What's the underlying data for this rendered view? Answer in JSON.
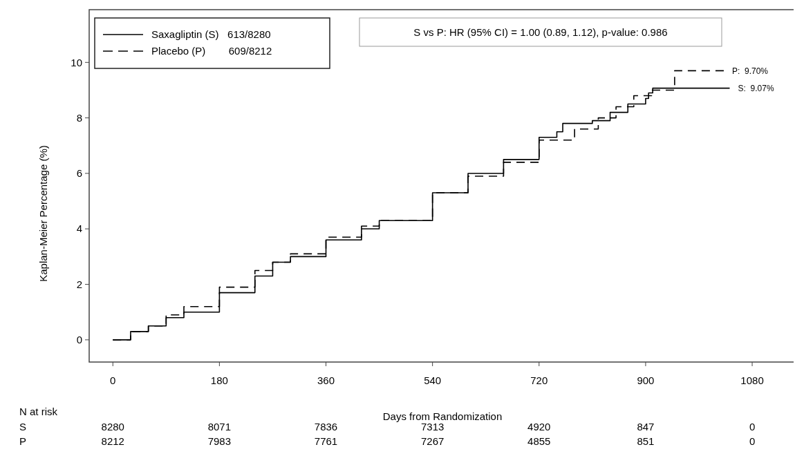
{
  "chart_data": {
    "type": "step",
    "xlabel": "Days from Randomization",
    "ylabel": "Kaplan-Meier Percentage (%)",
    "xlim": [
      -40,
      1150
    ],
    "xticks": [
      0,
      180,
      360,
      540,
      720,
      900,
      1080
    ],
    "ylim": [
      -0.8,
      11.9
    ],
    "yticks": [
      0,
      2,
      4,
      6,
      8,
      10
    ],
    "legend": "top left",
    "series": [
      {
        "name": "Saxagliptin (S)   613/8280",
        "color": "#000000",
        "line_style": "solid",
        "x": [
          0,
          30,
          60,
          90,
          120,
          180,
          240,
          270,
          300,
          360,
          420,
          450,
          540,
          600,
          660,
          720,
          750,
          760,
          810,
          840,
          870,
          900,
          905,
          912,
          1042
        ],
        "values": [
          0,
          0.3,
          0.5,
          0.8,
          1.0,
          1.7,
          2.3,
          2.8,
          3.0,
          3.6,
          4.0,
          4.3,
          5.3,
          6.0,
          6.5,
          7.3,
          7.5,
          7.8,
          7.9,
          8.2,
          8.5,
          8.7,
          8.9,
          9.07,
          9.07
        ]
      },
      {
        "name": "Placebo (P)        609/8212",
        "color": "#000000",
        "line_style": "dashed",
        "x": [
          0,
          30,
          60,
          90,
          120,
          180,
          240,
          270,
          300,
          360,
          420,
          450,
          540,
          600,
          660,
          720,
          780,
          820,
          850,
          880,
          910,
          949,
          1032
        ],
        "values": [
          0,
          0.3,
          0.5,
          0.9,
          1.2,
          1.9,
          2.5,
          2.8,
          3.1,
          3.7,
          4.1,
          4.3,
          5.3,
          5.9,
          6.4,
          7.2,
          7.6,
          8.0,
          8.4,
          8.8,
          9.0,
          9.7,
          9.7
        ]
      }
    ],
    "annotations": [
      "S vs P: HR (95% CI) = 1.00 (0.89, 1.12), p-value: 0.986",
      {
        "text": "P:  9.70%",
        "x": 1032,
        "y": 9.7
      },
      {
        "text": "S:  9.07%",
        "x": 1042,
        "y": 9.07
      },
      "N at risk",
      "S",
      "8280",
      "8071",
      "7836",
      "7313",
      "4920",
      "847",
      "0",
      "P",
      "8212",
      "7983",
      "7761",
      "7267",
      "4855",
      "851",
      "0"
    ]
  }
}
